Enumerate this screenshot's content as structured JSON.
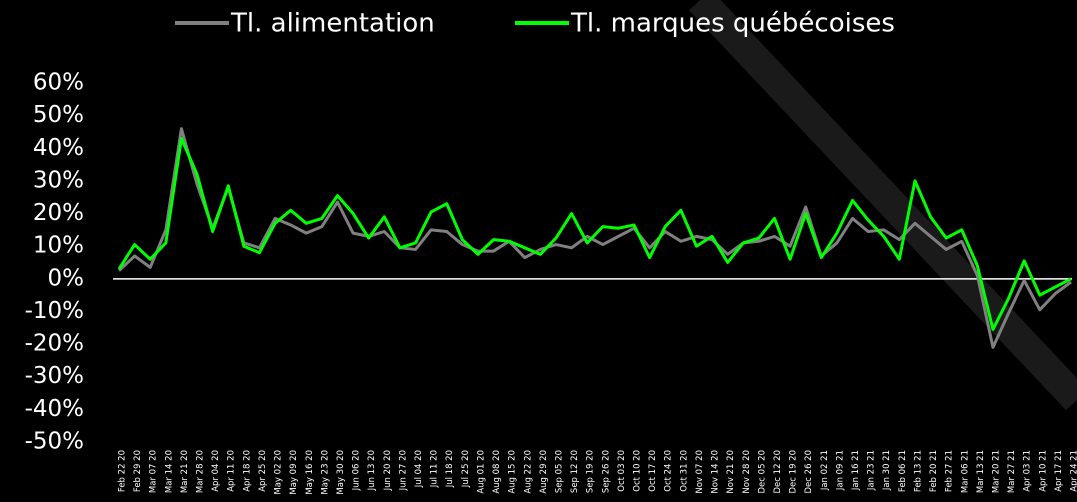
{
  "chart_data": {
    "type": "line",
    "categories": [
      "Feb 22 20",
      "Feb 29 20",
      "Mar 07 20",
      "Mar 14 20",
      "Mar 21 20",
      "Mar 28 20",
      "Apr 04 20",
      "Apr 11 20",
      "Apr 18 20",
      "Apr 25 20",
      "May 02 20",
      "May 09 20",
      "May 16 20",
      "May 23 20",
      "May 30 20",
      "Jun 06 20",
      "Jun 13 20",
      "Jun 20 20",
      "Jun 27 20",
      "Jul 04 20",
      "Jul 11 20",
      "Jul 18 20",
      "Jul 25 20",
      "Aug 01 20",
      "Aug 08 20",
      "Aug 15 20",
      "Aug 22 20",
      "Aug 29 20",
      "Sep 05 20",
      "Sep 12 20",
      "Sep 19 20",
      "Sep 26 20",
      "Oct 03 20",
      "Oct 10 20",
      "Oct 17 20",
      "Oct 24 20",
      "Oct 31 20",
      "Nov 07 20",
      "Nov 14 20",
      "Nov 21 20",
      "Nov 28 20",
      "Dec 05 20",
      "Dec 12 20",
      "Dec 19 20",
      "Dec 26 20",
      "Jan 02 21",
      "Jan 09 21",
      "Jan 16 21",
      "Jan 23 21",
      "Jan 30 21",
      "Feb 06 21",
      "Feb 13 21",
      "Feb 20 21",
      "Feb 27 21",
      "Mar 06 21",
      "Mar 13 21",
      "Mar 20 21",
      "Mar 27 21",
      "Apr 03 21",
      "Apr 10 21",
      "Apr 17 21",
      "Apr 24 21"
    ],
    "series": [
      {
        "name": "Tl. alimentation",
        "color": "#808080",
        "values": [
          2.5,
          7,
          3.5,
          15,
          46,
          29,
          15.5,
          28,
          11,
          9.5,
          18.5,
          16.5,
          14,
          16,
          23.5,
          14,
          13,
          14.5,
          9.5,
          9,
          15,
          14.5,
          10.5,
          8.5,
          8.5,
          11.5,
          6.5,
          9,
          10.5,
          9.5,
          13,
          10.5,
          13,
          15.5,
          9.5,
          14.5,
          11.5,
          13,
          12,
          7.5,
          11,
          11.5,
          13,
          10,
          22,
          7,
          11,
          18.5,
          14.5,
          15,
          12,
          17,
          13,
          9,
          11.5,
          1,
          -21,
          -10.5,
          -0.5,
          -9.5,
          -4.5,
          -1
        ]
      },
      {
        "name": "Tl. marques québécoises",
        "color": "#00ff00",
        "values": [
          3,
          10.5,
          6,
          11,
          43,
          32,
          14.5,
          28.5,
          10,
          8,
          17,
          21,
          17,
          18.5,
          25.5,
          20,
          12.5,
          19,
          9.5,
          11,
          20.5,
          23,
          12,
          7.5,
          12,
          11.5,
          9.5,
          7.5,
          12.5,
          20,
          11,
          16,
          15.5,
          16.5,
          6.5,
          16,
          21,
          10,
          13,
          5,
          11,
          12.5,
          18.5,
          6,
          20,
          6.5,
          14,
          24,
          18,
          13,
          6,
          30,
          19,
          12.5,
          15,
          4,
          -15.5,
          -6,
          5.5,
          -5,
          -2.5,
          0
        ]
      }
    ],
    "ylim": [
      -50,
      60
    ],
    "yticks": [
      {
        "value": -50,
        "label": "-50%"
      },
      {
        "value": -40,
        "label": "-40%"
      },
      {
        "value": -30,
        "label": "-30%"
      },
      {
        "value": -20,
        "label": "-20%"
      },
      {
        "value": -10,
        "label": "-10%"
      },
      {
        "value": 0,
        "label": "0%"
      },
      {
        "value": 10,
        "label": "10%"
      },
      {
        "value": 20,
        "label": "20%"
      },
      {
        "value": 30,
        "label": "30%"
      },
      {
        "value": 40,
        "label": "40%"
      },
      {
        "value": 50,
        "label": "50%"
      },
      {
        "value": 60,
        "label": "60%"
      }
    ],
    "grid": false,
    "legend": "top"
  }
}
